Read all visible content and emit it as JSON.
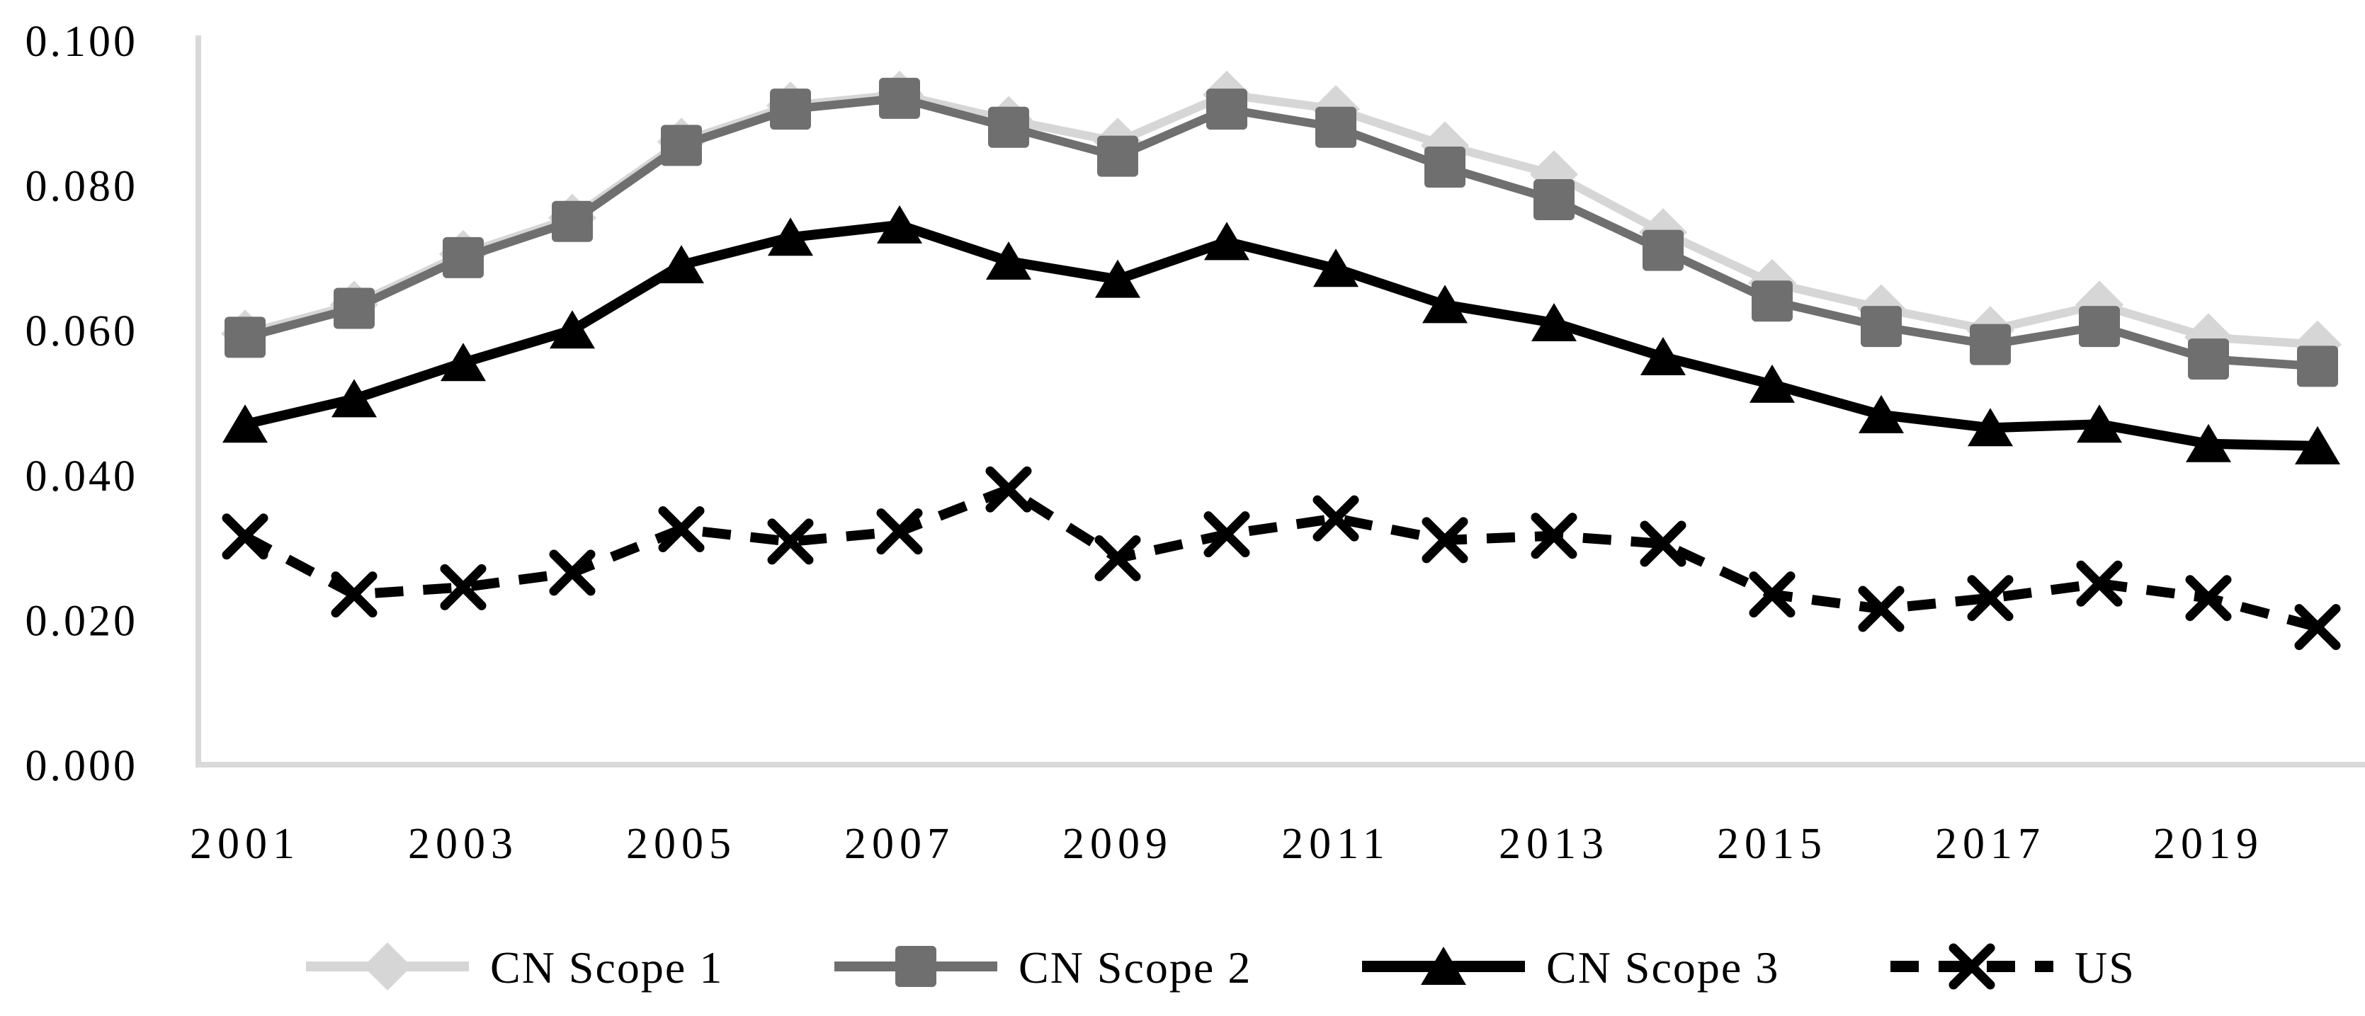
{
  "chart_data": {
    "type": "line",
    "title": "",
    "xlabel": "",
    "ylabel": "",
    "x": [
      2001,
      2002,
      2003,
      2004,
      2005,
      2006,
      2007,
      2008,
      2009,
      2010,
      2011,
      2012,
      2013,
      2014,
      2015,
      2016,
      2017,
      2018,
      2019,
      2020
    ],
    "x_tick_labels": [
      "2001",
      "2003",
      "2005",
      "2007",
      "2009",
      "2011",
      "2013",
      "2015",
      "2017",
      "2019"
    ],
    "y_ticks": [
      {
        "label": "0.000",
        "value": 0.0
      },
      {
        "label": "0.020",
        "value": 0.02
      },
      {
        "label": "0.040",
        "value": 0.04
      },
      {
        "label": "0.060",
        "value": 0.06
      },
      {
        "label": "0.080",
        "value": 0.08
      },
      {
        "label": "0.100",
        "value": 0.1
      }
    ],
    "ylim": [
      0.0,
      0.1
    ],
    "grid": false,
    "legend_position": "bottom",
    "series": [
      {
        "name": "CN Scope 1",
        "marker": "diamond",
        "color": "#D6D6D6",
        "line_style": "solid",
        "line_width": 12,
        "values": [
          0.0595,
          0.0635,
          0.0705,
          0.0755,
          0.086,
          0.091,
          0.0925,
          0.089,
          0.086,
          0.0925,
          0.0905,
          0.0855,
          0.0815,
          0.0735,
          0.0665,
          0.063,
          0.06,
          0.0635,
          0.059,
          0.058
        ]
      },
      {
        "name": "CN Scope 2",
        "marker": "square",
        "color": "#6F6F6F",
        "line_style": "solid",
        "line_width": 12,
        "values": [
          0.059,
          0.063,
          0.07,
          0.075,
          0.0855,
          0.0905,
          0.092,
          0.088,
          0.084,
          0.0905,
          0.088,
          0.0825,
          0.078,
          0.071,
          0.064,
          0.0605,
          0.058,
          0.0605,
          0.056,
          0.055
        ]
      },
      {
        "name": "CN Scope 3",
        "marker": "triangle",
        "color": "#000000",
        "line_style": "solid",
        "line_width": 14,
        "values": [
          0.047,
          0.0505,
          0.0555,
          0.06,
          0.069,
          0.0728,
          0.0745,
          0.0695,
          0.067,
          0.0722,
          0.0685,
          0.0635,
          0.061,
          0.0563,
          0.0525,
          0.0483,
          0.0465,
          0.047,
          0.0443,
          0.044
        ]
      },
      {
        "name": "US",
        "marker": "x",
        "color": "#000000",
        "line_style": "dashed",
        "line_width": 14,
        "values": [
          0.0315,
          0.0235,
          0.0245,
          0.0265,
          0.0325,
          0.0308,
          0.0322,
          0.038,
          0.0285,
          0.0318,
          0.034,
          0.031,
          0.0316,
          0.0305,
          0.0235,
          0.0215,
          0.023,
          0.025,
          0.023,
          0.019
        ]
      }
    ]
  },
  "colors": {
    "axis_line": "#D9D9D9",
    "text": "#000000",
    "background": "#FFFFFF"
  }
}
